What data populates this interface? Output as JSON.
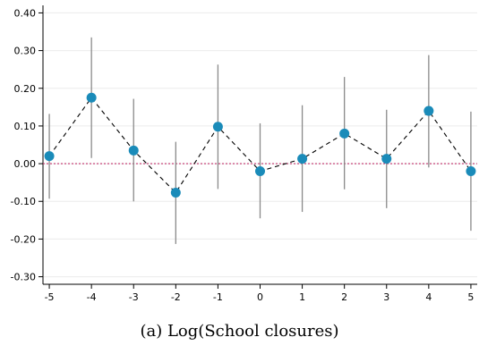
{
  "chart_data": {
    "type": "scatter",
    "caption": "(a) Log(School closures)",
    "x": [
      -5,
      -4,
      -3,
      -2,
      -1,
      0,
      1,
      2,
      3,
      4,
      5
    ],
    "y": [
      0.02,
      0.175,
      0.035,
      -0.077,
      0.098,
      -0.02,
      0.013,
      0.08,
      0.013,
      0.14,
      -0.02
    ],
    "ci_low": [
      -0.093,
      0.015,
      -0.1,
      -0.213,
      -0.067,
      -0.145,
      -0.128,
      -0.068,
      -0.118,
      -0.01,
      -0.178
    ],
    "ci_high": [
      0.132,
      0.335,
      0.172,
      0.058,
      0.263,
      0.107,
      0.155,
      0.23,
      0.143,
      0.288,
      0.138
    ],
    "xticks": [
      "-5",
      "-4",
      "-3",
      "-2",
      "-1",
      "0",
      "1",
      "2",
      "3",
      "4",
      "5"
    ],
    "yticks": [
      "0.40",
      "0.30",
      "0.20",
      "0.10",
      "0.00",
      "-0.10",
      "-0.20",
      "-0.30"
    ],
    "ylim": [
      -0.32,
      0.42
    ],
    "xlim": [
      -5.15,
      5.15
    ],
    "reference_line_y": 0,
    "grid": "horizontal",
    "colors": {
      "marker": "#1a8bb9",
      "ci": "#8a8a8a",
      "connector": "#000000",
      "reference": "#c0306a",
      "grid": "#ececec"
    }
  }
}
